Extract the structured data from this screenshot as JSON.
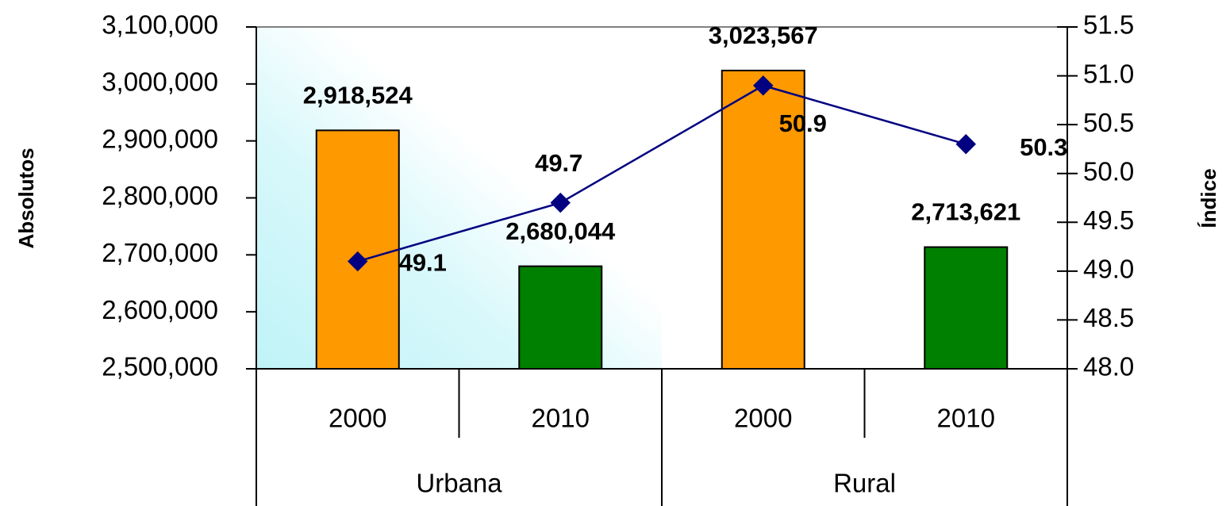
{
  "chart_data": {
    "type": "bar",
    "categories": [
      "2000",
      "2010",
      "2000",
      "2010"
    ],
    "groups": [
      "Urbana",
      "Rural"
    ],
    "y_label": "Absolutos",
    "y2_label": "Índice",
    "ylim": [
      2500000,
      3100000
    ],
    "yticks": [
      {
        "value": 2500000,
        "label": "2,500,000"
      },
      {
        "value": 2600000,
        "label": "2,600,000"
      },
      {
        "value": 2700000,
        "label": "2,700,000"
      },
      {
        "value": 2800000,
        "label": "2,800,000"
      },
      {
        "value": 2900000,
        "label": "2,900,000"
      },
      {
        "value": 3000000,
        "label": "3,000,000"
      },
      {
        "value": 3100000,
        "label": "3,100,000"
      }
    ],
    "y2lim": [
      48.0,
      51.5
    ],
    "y2ticks": [
      {
        "value": 48,
        "label": "48.0"
      },
      48.5,
      {
        "value": 49,
        "label": "49.0"
      },
      49.5,
      {
        "value": 50,
        "label": "50.0"
      },
      50.5,
      {
        "value": 51,
        "label": "51.0"
      },
      51.5
    ],
    "series": [
      {
        "type": "bar",
        "values": [
          2918524,
          2680044,
          3023567,
          2713621
        ],
        "value_labels": [
          "2,918,524",
          "2,680,044",
          "3,023,567",
          "2,713,621"
        ],
        "colors": [
          "#FF9900",
          "#008000",
          "#FF9900",
          "#008000"
        ]
      },
      {
        "type": "line",
        "axis": "y2",
        "values": [
          49.1,
          49.7,
          50.9,
          50.3
        ],
        "color": "#000080"
      }
    ]
  }
}
